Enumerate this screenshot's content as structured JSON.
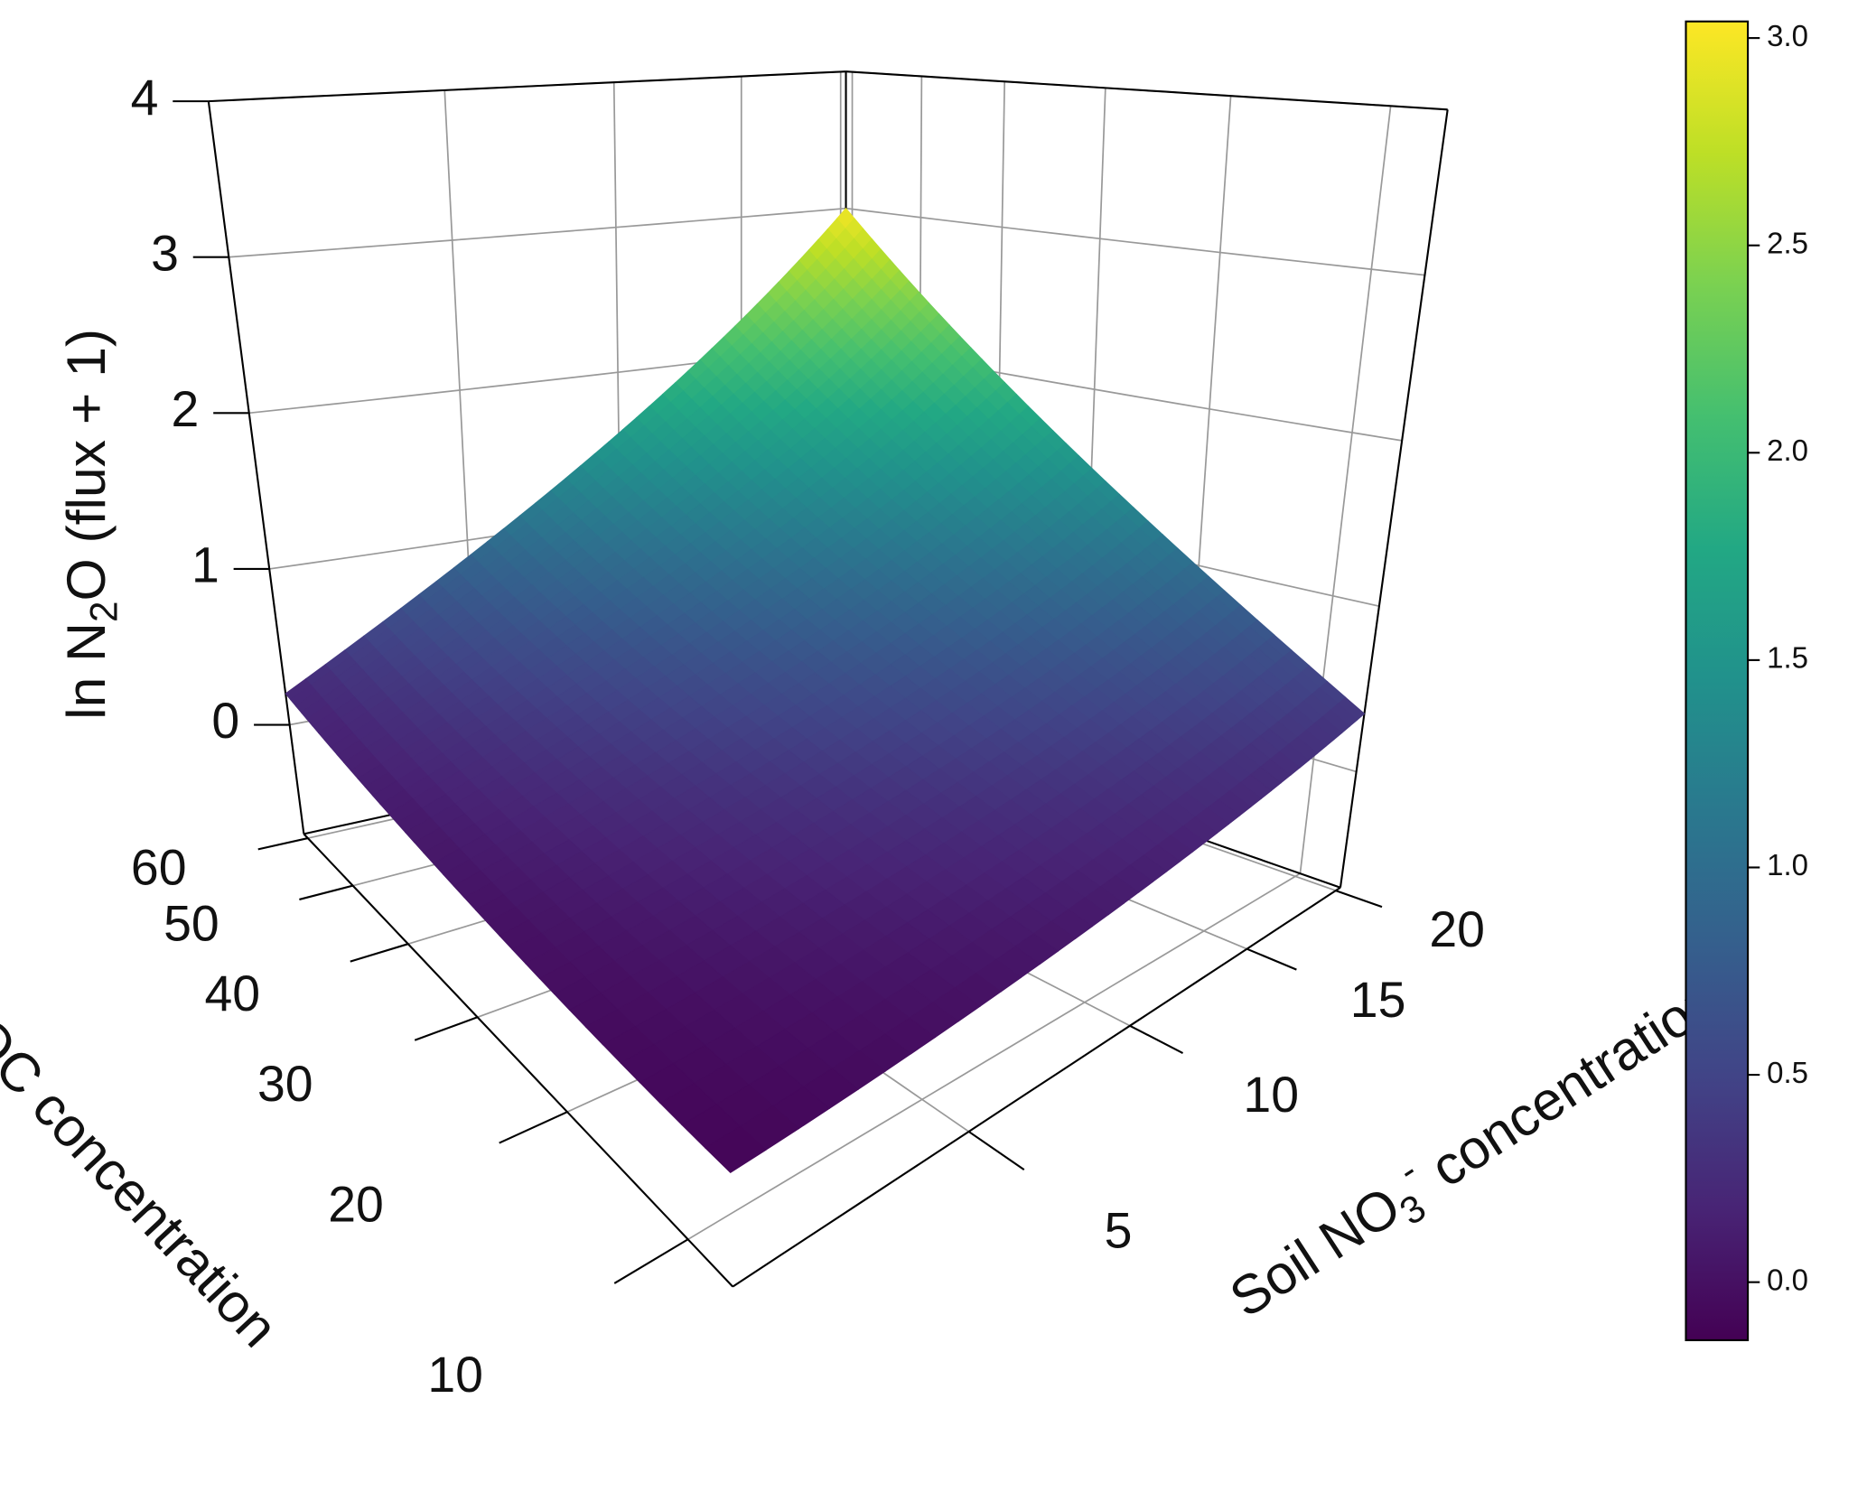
{
  "chart_data": {
    "type": "surface3d",
    "zlabel": [
      "ln N",
      "2",
      "O (flux + 1)"
    ],
    "xlabel": [
      "Soil NO",
      "3",
      "-",
      "concentration"
    ],
    "ylabel": "Soil WEOC concentration",
    "xlim": [
      0,
      20.3
    ],
    "ylim": [
      7,
      61
    ],
    "zlim": [
      -0.7,
      4
    ],
    "xticks": [
      5,
      10,
      15,
      20
    ],
    "yticks": [
      10,
      20,
      30,
      40,
      50,
      60
    ],
    "zticks": [
      0,
      1,
      2,
      3,
      4
    ],
    "grid": true,
    "colormap": "viridis",
    "surface": {
      "x": [
        0,
        20.3
      ],
      "y": [
        7,
        61
      ],
      "z": [
        [
          -0.1,
          0.35
        ],
        [
          0.2,
          3.0
        ]
      ]
    },
    "colorbar": {
      "lim": [
        -0.14,
        3.04
      ],
      "ticks": [
        {
          "value": 0,
          "label": "0.0"
        },
        {
          "value": 0.5,
          "label": "0.5"
        },
        {
          "value": 1,
          "label": "1.0"
        },
        {
          "value": 1.5,
          "label": "1.5"
        },
        {
          "value": 2,
          "label": "2.0"
        },
        {
          "value": 2.5,
          "label": "2.5"
        },
        {
          "value": 3,
          "label": "3.0"
        }
      ]
    }
  }
}
